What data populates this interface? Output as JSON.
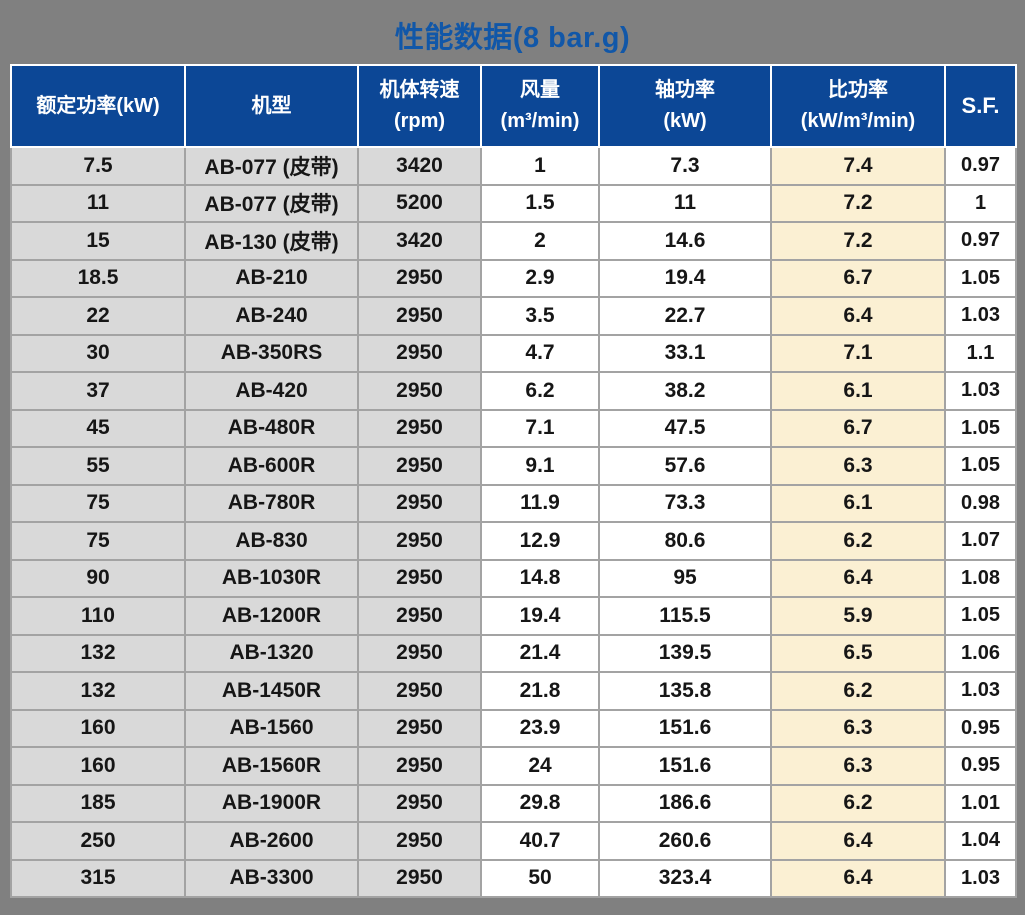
{
  "title": "性能数据(8 bar.g)",
  "colors": {
    "page_bg": "#808080",
    "title_color": "#1157A8",
    "header_bg": "#0C4796",
    "header_text": "#FFFFFF",
    "gray_cell": "#D9D9D9",
    "cream_cell": "#FBF0D3",
    "grid_border": "#A3A3A3",
    "outer_border": "#C9C9C9"
  },
  "table": {
    "column_keys": [
      "rated-power-kw",
      "model",
      "speed-rpm",
      "air-flow-m3min",
      "shaft-power-kw",
      "specific-power",
      "service-factor"
    ],
    "headers": [
      {
        "line1": "额定功率(kW)",
        "line2": ""
      },
      {
        "line1": "机型",
        "line2": ""
      },
      {
        "line1": "机体转速",
        "line2": "(rpm)"
      },
      {
        "line1": "风量",
        "line2": "(m³/min)"
      },
      {
        "line1": "轴功率",
        "line2": "(kW)"
      },
      {
        "line1": "比功率",
        "line2": "(kW/m³/min)"
      },
      {
        "line1": "S.F.",
        "line2": ""
      }
    ],
    "rows": [
      [
        "7.5",
        "AB-077 (皮带)",
        "3420",
        "1",
        "7.3",
        "7.4",
        "0.97"
      ],
      [
        "11",
        "AB-077 (皮带)",
        "5200",
        "1.5",
        "11",
        "7.2",
        "1"
      ],
      [
        "15",
        "AB-130 (皮带)",
        "3420",
        "2",
        "14.6",
        "7.2",
        "0.97"
      ],
      [
        "18.5",
        "AB-210",
        "2950",
        "2.9",
        "19.4",
        "6.7",
        "1.05"
      ],
      [
        "22",
        "AB-240",
        "2950",
        "3.5",
        "22.7",
        "6.4",
        "1.03"
      ],
      [
        "30",
        "AB-350RS",
        "2950",
        "4.7",
        "33.1",
        "7.1",
        "1.1"
      ],
      [
        "37",
        "AB-420",
        "2950",
        "6.2",
        "38.2",
        "6.1",
        "1.03"
      ],
      [
        "45",
        "AB-480R",
        "2950",
        "7.1",
        "47.5",
        "6.7",
        "1.05"
      ],
      [
        "55",
        "AB-600R",
        "2950",
        "9.1",
        "57.6",
        "6.3",
        "1.05"
      ],
      [
        "75",
        "AB-780R",
        "2950",
        "11.9",
        "73.3",
        "6.1",
        "0.98"
      ],
      [
        "75",
        "AB-830",
        "2950",
        "12.9",
        "80.6",
        "6.2",
        "1.07"
      ],
      [
        "90",
        "AB-1030R",
        "2950",
        "14.8",
        "95",
        "6.4",
        "1.08"
      ],
      [
        "110",
        "AB-1200R",
        "2950",
        "19.4",
        "115.5",
        "5.9",
        "1.05"
      ],
      [
        "132",
        "AB-1320",
        "2950",
        "21.4",
        "139.5",
        "6.5",
        "1.06"
      ],
      [
        "132",
        "AB-1450R",
        "2950",
        "21.8",
        "135.8",
        "6.2",
        "1.03"
      ],
      [
        "160",
        "AB-1560",
        "2950",
        "23.9",
        "151.6",
        "6.3",
        "0.95"
      ],
      [
        "160",
        "AB-1560R",
        "2950",
        "24",
        "151.6",
        "6.3",
        "0.95"
      ],
      [
        "185",
        "AB-1900R",
        "2950",
        "29.8",
        "186.6",
        "6.2",
        "1.01"
      ],
      [
        "250",
        "AB-2600",
        "2950",
        "40.7",
        "260.6",
        "6.4",
        "1.04"
      ],
      [
        "315",
        "AB-3300",
        "2950",
        "50",
        "323.4",
        "6.4",
        "1.03"
      ]
    ]
  }
}
